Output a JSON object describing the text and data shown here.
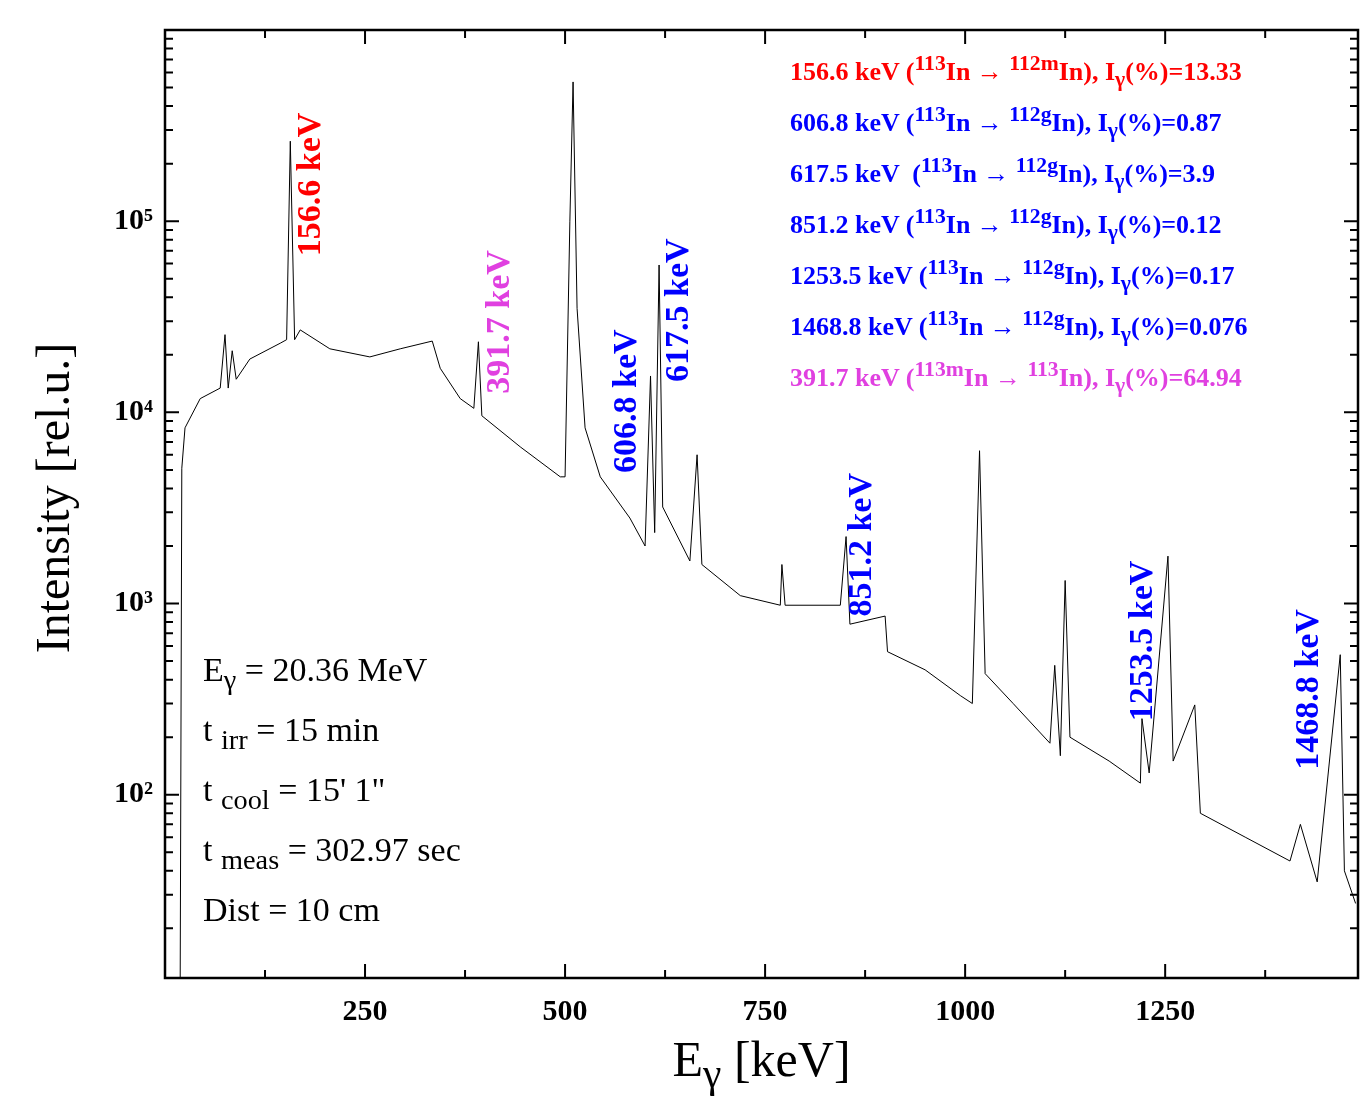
{
  "chart_data": {
    "type": "line",
    "xlabel": "E$_{γ}$ [keV]",
    "ylabel": "Intensity [rel.u.]",
    "color": "#000000",
    "log": "y",
    "marker": "none",
    "grid": false,
    "legend": false,
    "xlim": [
      0,
      1491
    ],
    "ylim": [
      11,
      1000000
    ],
    "xticks": [
      {
        "value": 125,
        "label": null
      },
      250,
      {
        "value": 375,
        "label": null
      },
      500,
      {
        "value": 625,
        "label": null
      },
      750,
      {
        "value": 875,
        "label": null
      },
      1000,
      {
        "value": 1125,
        "label": null
      },
      1250,
      {
        "value": 1375,
        "label": null
      }
    ],
    "yticks": [
      {
        "value": 20,
        "label": null
      },
      {
        "value": 30,
        "label": null
      },
      {
        "value": 40,
        "label": null
      },
      {
        "value": 50,
        "label": null
      },
      {
        "value": 60,
        "label": null
      },
      {
        "value": 70,
        "label": null
      },
      {
        "value": 80,
        "label": null
      },
      {
        "value": 90,
        "label": null
      },
      {
        "value": 100,
        "label": "10²"
      },
      {
        "value": 200,
        "label": null
      },
      {
        "value": 300,
        "label": null
      },
      {
        "value": 400,
        "label": null
      },
      {
        "value": 500,
        "label": null
      },
      {
        "value": 600,
        "label": null
      },
      {
        "value": 700,
        "label": null
      },
      {
        "value": 800,
        "label": null
      },
      {
        "value": 900,
        "label": null
      },
      {
        "value": 1000,
        "label": "10³"
      },
      {
        "value": 2000,
        "label": null
      },
      {
        "value": 3000,
        "label": null
      },
      {
        "value": 4000,
        "label": null
      },
      {
        "value": 5000,
        "label": null
      },
      {
        "value": 6000,
        "label": null
      },
      {
        "value": 7000,
        "label": null
      },
      {
        "value": 8000,
        "label": null
      },
      {
        "value": 9000,
        "label": null
      },
      {
        "value": 10000,
        "label": "10⁴"
      },
      {
        "value": 20000,
        "label": null
      },
      {
        "value": 30000,
        "label": null
      },
      {
        "value": 40000,
        "label": null
      },
      {
        "value": 50000,
        "label": null
      },
      {
        "value": 60000,
        "label": null
      },
      {
        "value": 70000,
        "label": null
      },
      {
        "value": 80000,
        "label": null
      },
      {
        "value": 90000,
        "label": null
      },
      {
        "value": 100000,
        "label": "10⁵"
      },
      {
        "value": 200000,
        "label": null
      },
      {
        "value": 300000,
        "label": null
      },
      {
        "value": 400000,
        "label": null
      },
      {
        "value": 500000,
        "label": null
      },
      {
        "value": 600000,
        "label": null
      },
      {
        "value": 700000,
        "label": null
      },
      {
        "value": 800000,
        "label": null
      },
      {
        "value": 900000,
        "label": null
      }
    ],
    "x": [
      19,
      21,
      25,
      44,
      69,
      75,
      79,
      84,
      89,
      106,
      144,
      152,
      156.6,
      162,
      169,
      206,
      256,
      294,
      334,
      344,
      369,
      386,
      391.7,
      396,
      444,
      494,
      500,
      506,
      510,
      515,
      525,
      544,
      581,
      600,
      606.8,
      612,
      617.5,
      622,
      656,
      665,
      671,
      719,
      769,
      771,
      775,
      844,
      851.2,
      856,
      900,
      903,
      950,
      994,
      1009,
      1018,
      1025,
      1060,
      1106,
      1112,
      1119,
      1125,
      1131,
      1180,
      1219,
      1221,
      1230,
      1253.5,
      1260,
      1287,
      1294,
      1350,
      1406,
      1419,
      1440,
      1468.8,
      1474,
      1488
    ],
    "values": [
      11,
      5100,
      8300,
      11800,
      13400,
      25500,
      13400,
      21000,
      14900,
      19000,
      23000,
      24000,
      262000,
      24000,
      27000,
      21500,
      19500,
      21500,
      23600,
      17000,
      11800,
      10500,
      23400,
      9600,
      6600,
      4600,
      4600,
      100000,
      535000,
      35000,
      8300,
      4600,
      2800,
      2000,
      15500,
      2350,
      59000,
      3200,
      1670,
      6000,
      1600,
      1100,
      980,
      1600,
      980,
      980,
      2240,
      780,
      860,
      560,
      450,
      330,
      300,
      6300,
      430,
      300,
      186,
      475,
      160,
      1320,
      200,
      150,
      115,
      250,
      130,
      1770,
      150,
      295,
      80,
      60,
      45,
      70,
      35,
      540,
      40,
      27
    ],
    "annotations": [
      {
        "text": "156.6 keV",
        "x": 156.6,
        "y": 262000
      },
      {
        "text": "391.7 keV",
        "x": 391.7,
        "y": 23400
      },
      {
        "text": "606.8 keV",
        "x": 606.8,
        "y": 15500
      },
      {
        "text": "617.5 keV",
        "x": 617.5,
        "y": 59000
      },
      {
        "text": "851.2 keV",
        "x": 851.2,
        "y": 2240
      },
      {
        "text": "1253.5 keV",
        "x": 1253.5,
        "y": 1770
      },
      {
        "text": "1468.8 keV",
        "x": 1468.8,
        "y": 540
      },
      "156.6 keV ($^{113}$In → $^{112m}$In), I$_{γ}$(%)=13.33",
      "606.8 keV ($^{113}$In → $^{112g}$In), I$_{γ}$(%)=0.87",
      "617.5 keV  ($^{113}$In → $^{112g}$In), I$_{γ}$(%)=3.9",
      "851.2 keV ($^{113}$In → $^{112g}$In), I$_{γ}$(%)=0.12",
      "1253.5 keV ($^{113}$In → $^{112g}$In), I$_{γ}$(%)=0.17",
      "1468.8 keV ($^{113}$In → $^{112g}$In), I$_{γ}$(%)=0.076",
      "391.7 keV ($^{113m}$In → $^{113}$In), I$_{γ}$(%)=64.94",
      "E$_{γ}$ = 20.36 MeV",
      "t $_{irr}$ = 15 min",
      "t $_{cool}$ = 15' 1\"",
      "t $_{meas}$ = 302.97 sec",
      "Dist = 10 cm"
    ]
  }
}
